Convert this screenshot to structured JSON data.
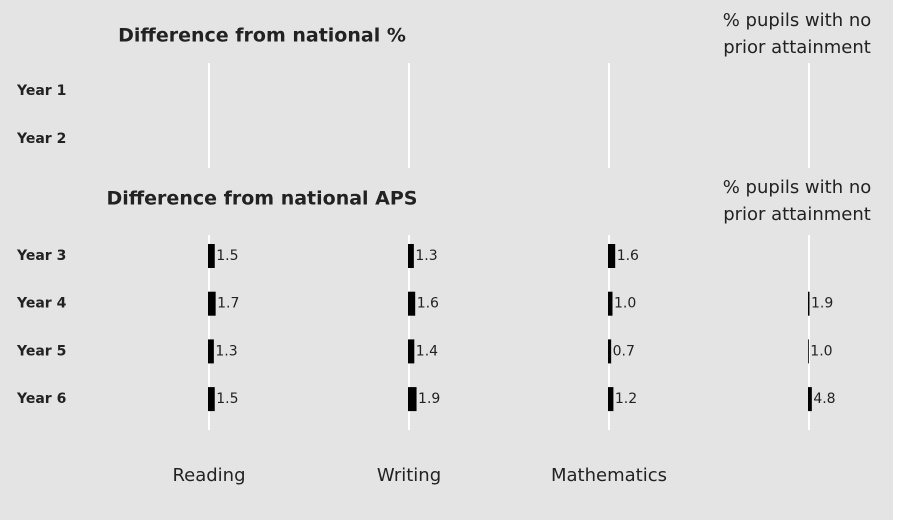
{
  "chart_data": [
    {
      "type": "bar-table",
      "title": "Difference from national %",
      "column_note": "% pupils with no prior attainment",
      "categories": [
        "Year 1",
        "Year 2"
      ]
    },
    {
      "type": "bar-table",
      "title": "Difference from national APS",
      "column_note": "% pupils with no prior attainment",
      "categories": [
        "Year 3",
        "Year 4",
        "Year 5",
        "Year 6"
      ],
      "color": "#000000",
      "series": [
        {
          "name": "Reading",
          "values": [
            1.5,
            1.7,
            1.3,
            1.5
          ],
          "value_labels": [
            "1.5",
            "1.7",
            "1.3",
            "1.5"
          ]
        },
        {
          "name": "Writing",
          "values": [
            1.3,
            1.6,
            1.4,
            1.9
          ],
          "value_labels": [
            "1.3",
            "1.6",
            "1.4",
            "1.9"
          ]
        },
        {
          "name": "Mathematics",
          "values": [
            1.6,
            1.0,
            0.7,
            1.2
          ],
          "value_labels": [
            "1.6",
            "1.0",
            "0.7",
            "1.2"
          ]
        },
        {
          "name": "% pupils with no prior attainment",
          "values": [
            null,
            1.9,
            1.0,
            4.8
          ],
          "value_labels": [
            null,
            "1.9",
            "1.0",
            "4.8"
          ]
        }
      ]
    }
  ]
}
